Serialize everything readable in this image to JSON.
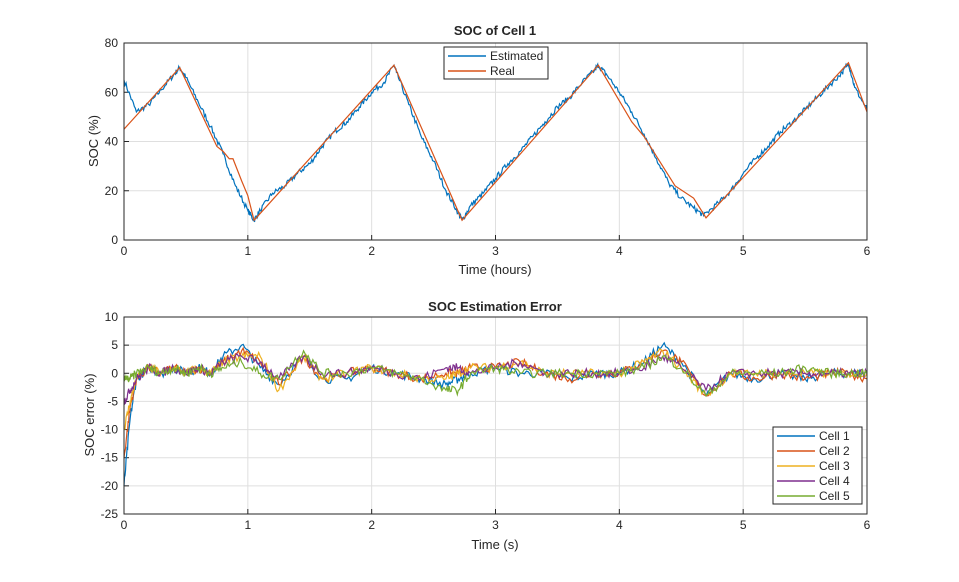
{
  "colors": {
    "c1": "#0072BD",
    "c2": "#D95319",
    "c3": "#EDB120",
    "c4": "#7E2F8E",
    "c5": "#77AC30",
    "grid": "#dfdfdf"
  },
  "chart_data": [
    {
      "type": "line",
      "title": "SOC of Cell 1",
      "xlabel": "Time (hours)",
      "ylabel": "SOC (%)",
      "xlim": [
        0,
        6
      ],
      "ylim": [
        0,
        80
      ],
      "xticks": [
        0,
        1,
        2,
        3,
        4,
        5,
        6
      ],
      "yticks": [
        0,
        20,
        40,
        60,
        80
      ],
      "grid": true,
      "legend": "top-center",
      "series": [
        {
          "name": "Estimated",
          "color": "#0072BD",
          "x": [
            0,
            0.1,
            0.2,
            0.3,
            0.4,
            0.45,
            0.5,
            0.6,
            0.7,
            0.8,
            0.9,
            1.0,
            1.05,
            1.1,
            1.2,
            1.3,
            1.4,
            1.5,
            1.6,
            1.7,
            1.8,
            1.9,
            2.0,
            2.1,
            2.18,
            2.2,
            2.3,
            2.4,
            2.5,
            2.6,
            2.7,
            2.73,
            2.8,
            2.9,
            3.0,
            3.1,
            3.2,
            3.3,
            3.4,
            3.5,
            3.6,
            3.7,
            3.8,
            3.83,
            3.9,
            4.0,
            4.1,
            4.2,
            4.3,
            4.4,
            4.5,
            4.6,
            4.68,
            4.8,
            4.9,
            5.0,
            5.1,
            5.2,
            5.3,
            5.4,
            5.5,
            5.6,
            5.7,
            5.8,
            5.85,
            5.9,
            6.0
          ],
          "y": [
            65,
            52,
            55,
            61,
            67,
            70,
            66,
            56,
            46,
            35,
            22,
            12,
            8,
            12,
            19,
            22,
            27,
            31,
            38,
            44,
            48,
            54,
            60,
            64,
            71,
            68,
            55,
            42,
            32,
            20,
            11,
            8,
            14,
            19,
            25,
            31,
            36,
            42,
            48,
            54,
            58,
            64,
            69,
            71,
            67,
            60,
            52,
            43,
            33,
            23,
            17,
            13,
            10,
            15,
            20,
            27,
            33,
            38,
            44,
            48,
            53,
            58,
            63,
            68,
            72,
            62,
            53
          ]
        },
        {
          "name": "Real",
          "color": "#D95319",
          "x": [
            0,
            0.45,
            0.75,
            0.8,
            0.85,
            0.88,
            0.95,
            1.0,
            1.05,
            2.18,
            2.73,
            3.83,
            4.1,
            4.2,
            4.45,
            4.6,
            4.7,
            5.85,
            6.0
          ],
          "y": [
            45,
            70,
            38,
            36,
            33,
            33,
            24,
            18,
            8,
            71,
            8,
            71,
            48,
            42,
            22,
            17,
            9,
            72,
            52
          ]
        }
      ]
    },
    {
      "type": "line",
      "title": "SOC Estimation Error",
      "xlabel": "Time (s)",
      "ylabel": "SOC error (%)",
      "xlim": [
        0,
        6
      ],
      "ylim": [
        -25,
        10
      ],
      "xticks": [
        0,
        1,
        2,
        3,
        4,
        5,
        6
      ],
      "yticks": [
        -25,
        -20,
        -15,
        -10,
        -5,
        0,
        5,
        10
      ],
      "grid": true,
      "legend": "bottom-right",
      "x": [
        0,
        0.05,
        0.1,
        0.2,
        0.3,
        0.4,
        0.5,
        0.6,
        0.7,
        0.8,
        0.95,
        1.1,
        1.25,
        1.45,
        1.6,
        1.8,
        2.0,
        2.2,
        2.4,
        2.6,
        2.7,
        2.8,
        3.0,
        3.2,
        3.4,
        3.6,
        3.8,
        4.0,
        4.2,
        4.35,
        4.5,
        4.7,
        4.9,
        5.1,
        5.3,
        5.5,
        5.7,
        5.85,
        6.0
      ],
      "series": [
        {
          "name": "Cell 1",
          "color": "#0072BD",
          "y": [
            -20,
            -8,
            -1,
            1,
            0,
            1,
            0,
            1,
            0,
            3,
            5,
            1,
            -2,
            3,
            -1,
            -1,
            1,
            0,
            -1,
            -2,
            -1,
            0,
            1,
            0,
            0,
            -1,
            0,
            0,
            2,
            5,
            2,
            -4,
            0,
            -1,
            0,
            -1,
            0,
            0,
            0
          ]
        },
        {
          "name": "Cell 2",
          "color": "#D95319",
          "y": [
            -15,
            -6,
            -1,
            1,
            0,
            1,
            0,
            1,
            0,
            2,
            4,
            2,
            -2,
            3,
            -1,
            0,
            1,
            0,
            -1,
            0,
            0,
            1,
            1,
            2,
            0,
            -1,
            0,
            0,
            2,
            4,
            2,
            -4,
            0,
            -1,
            0,
            -1,
            0,
            0,
            -1
          ]
        },
        {
          "name": "Cell 3",
          "color": "#EDB120",
          "y": [
            -10,
            -5,
            -1,
            1,
            0,
            1,
            0,
            1,
            0,
            2,
            3,
            3,
            -3,
            3,
            -1,
            0,
            1,
            0,
            -1,
            -1,
            0,
            1,
            1,
            2,
            0,
            0,
            0,
            0,
            2,
            4,
            1,
            -4,
            0,
            0,
            0,
            0,
            0,
            0,
            0
          ]
        },
        {
          "name": "Cell 4",
          "color": "#7E2F8E",
          "y": [
            -5,
            -3,
            -1,
            1,
            0,
            1,
            0,
            1,
            0,
            2,
            3,
            2,
            -1,
            3,
            0,
            0,
            1,
            0,
            -1,
            1,
            1,
            0,
            1,
            2,
            0,
            0,
            0,
            0,
            1,
            3,
            1,
            -3,
            0,
            0,
            0,
            0,
            0,
            0,
            0
          ]
        },
        {
          "name": "Cell 5",
          "color": "#77AC30",
          "y": [
            -1,
            -1,
            0,
            1,
            0,
            1,
            0,
            1,
            0,
            1,
            2,
            0,
            -1,
            4,
            0,
            0,
            1,
            0,
            -1,
            -3,
            -3,
            0,
            1,
            0,
            0,
            0,
            0,
            0,
            1,
            3,
            1,
            -4,
            0,
            0,
            0,
            1,
            0,
            0,
            0
          ]
        }
      ]
    }
  ]
}
